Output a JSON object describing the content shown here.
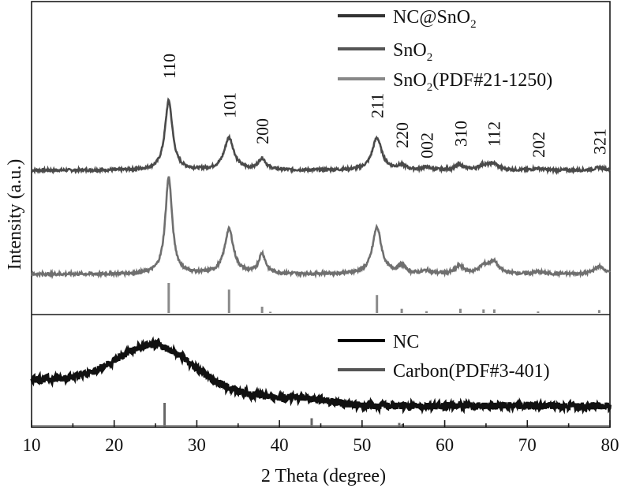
{
  "chart_data": {
    "type": "line",
    "xlabel": "2 Theta (degree)",
    "ylabel": "Intensity (a.u.)",
    "xlim": [
      10,
      80
    ],
    "xticks": [
      10,
      20,
      30,
      40,
      50,
      60,
      70,
      80
    ],
    "grid": false,
    "panels": [
      {
        "id": "top",
        "legend": {
          "placement": "top-right",
          "entries": [
            {
              "label": "NC@SnO",
              "sub": "2",
              "tail": "",
              "color": "#333333"
            },
            {
              "label": "SnO",
              "sub": "2",
              "tail": "",
              "color": "#555555"
            },
            {
              "label": "SnO",
              "sub": "2",
              "tail": "(PDF#21-1250)",
              "color": "#888888"
            }
          ]
        },
        "series": [
          {
            "name": "NC@SnO2",
            "color": "#4a4a4a",
            "baseline": 0.12,
            "peaks": [
              {
                "x": 26.6,
                "height": 0.8,
                "width": 0.55
              },
              {
                "x": 33.9,
                "height": 0.37,
                "width": 0.7
              },
              {
                "x": 37.9,
                "height": 0.13,
                "width": 0.55
              },
              {
                "x": 51.8,
                "height": 0.37,
                "width": 0.7
              },
              {
                "x": 54.8,
                "height": 0.05,
                "width": 0.6
              },
              {
                "x": 57.8,
                "height": 0.03,
                "width": 0.6
              },
              {
                "x": 61.8,
                "height": 0.06,
                "width": 0.6
              },
              {
                "x": 64.7,
                "height": 0.05,
                "width": 0.7
              },
              {
                "x": 65.9,
                "height": 0.07,
                "width": 0.7
              },
              {
                "x": 71.3,
                "height": 0.02,
                "width": 0.7
              },
              {
                "x": 78.7,
                "height": 0.03,
                "width": 0.7
              }
            ]
          },
          {
            "name": "SnO2",
            "color": "#6f6f6f",
            "baseline": 0.12,
            "peaks": [
              {
                "x": 26.6,
                "height": 0.98,
                "width": 0.5
              },
              {
                "x": 33.9,
                "height": 0.45,
                "width": 0.65
              },
              {
                "x": 37.9,
                "height": 0.2,
                "width": 0.5
              },
              {
                "x": 51.8,
                "height": 0.47,
                "width": 0.65
              },
              {
                "x": 54.8,
                "height": 0.08,
                "width": 0.55
              },
              {
                "x": 57.8,
                "height": 0.03,
                "width": 0.6
              },
              {
                "x": 61.8,
                "height": 0.08,
                "width": 0.6
              },
              {
                "x": 64.7,
                "height": 0.07,
                "width": 0.7
              },
              {
                "x": 65.9,
                "height": 0.12,
                "width": 0.7
              },
              {
                "x": 71.3,
                "height": 0.02,
                "width": 0.7
              },
              {
                "x": 78.7,
                "height": 0.08,
                "width": 0.7
              }
            ]
          }
        ],
        "reference_lines": [
          {
            "x": 26.6,
            "rel": 1.0
          },
          {
            "x": 33.9,
            "rel": 0.78
          },
          {
            "x": 37.9,
            "rel": 0.21
          },
          {
            "x": 38.9,
            "rel": 0.04
          },
          {
            "x": 51.8,
            "rel": 0.6
          },
          {
            "x": 54.8,
            "rel": 0.14
          },
          {
            "x": 57.8,
            "rel": 0.06
          },
          {
            "x": 61.9,
            "rel": 0.14
          },
          {
            "x": 64.7,
            "rel": 0.12
          },
          {
            "x": 66.0,
            "rel": 0.12
          },
          {
            "x": 71.3,
            "rel": 0.05
          },
          {
            "x": 78.7,
            "rel": 0.1
          }
        ],
        "peak_labels": [
          {
            "x": 26.6,
            "text": "110"
          },
          {
            "x": 33.9,
            "text": "101"
          },
          {
            "x": 37.9,
            "text": "200"
          },
          {
            "x": 51.8,
            "text": "211"
          },
          {
            "x": 54.8,
            "text": "220"
          },
          {
            "x": 57.8,
            "text": "002"
          },
          {
            "x": 61.9,
            "text": "310"
          },
          {
            "x": 65.9,
            "text": "112"
          },
          {
            "x": 71.3,
            "text": "202"
          },
          {
            "x": 78.7,
            "text": "321"
          }
        ]
      },
      {
        "id": "bottom",
        "legend": {
          "placement": "top-right",
          "entries": [
            {
              "label": "NC",
              "sub": "",
              "tail": "",
              "color": "#000000"
            },
            {
              "label": "Carbon(PDF#3-401)",
              "sub": "",
              "tail": "",
              "color": "#555555"
            }
          ]
        },
        "series": [
          {
            "name": "NC",
            "color": "#111111",
            "broad_peak": {
              "x": 25.0,
              "height": 1.0,
              "baseline_left": 0.38,
              "baseline_right": 0.05
            }
          }
        ],
        "reference_lines": [
          {
            "x": 26.1,
            "rel": 1.0
          },
          {
            "x": 43.9,
            "rel": 0.35
          },
          {
            "x": 54.5,
            "rel": 0.15
          },
          {
            "x": 54.9,
            "rel": 0.1
          }
        ]
      }
    ]
  }
}
